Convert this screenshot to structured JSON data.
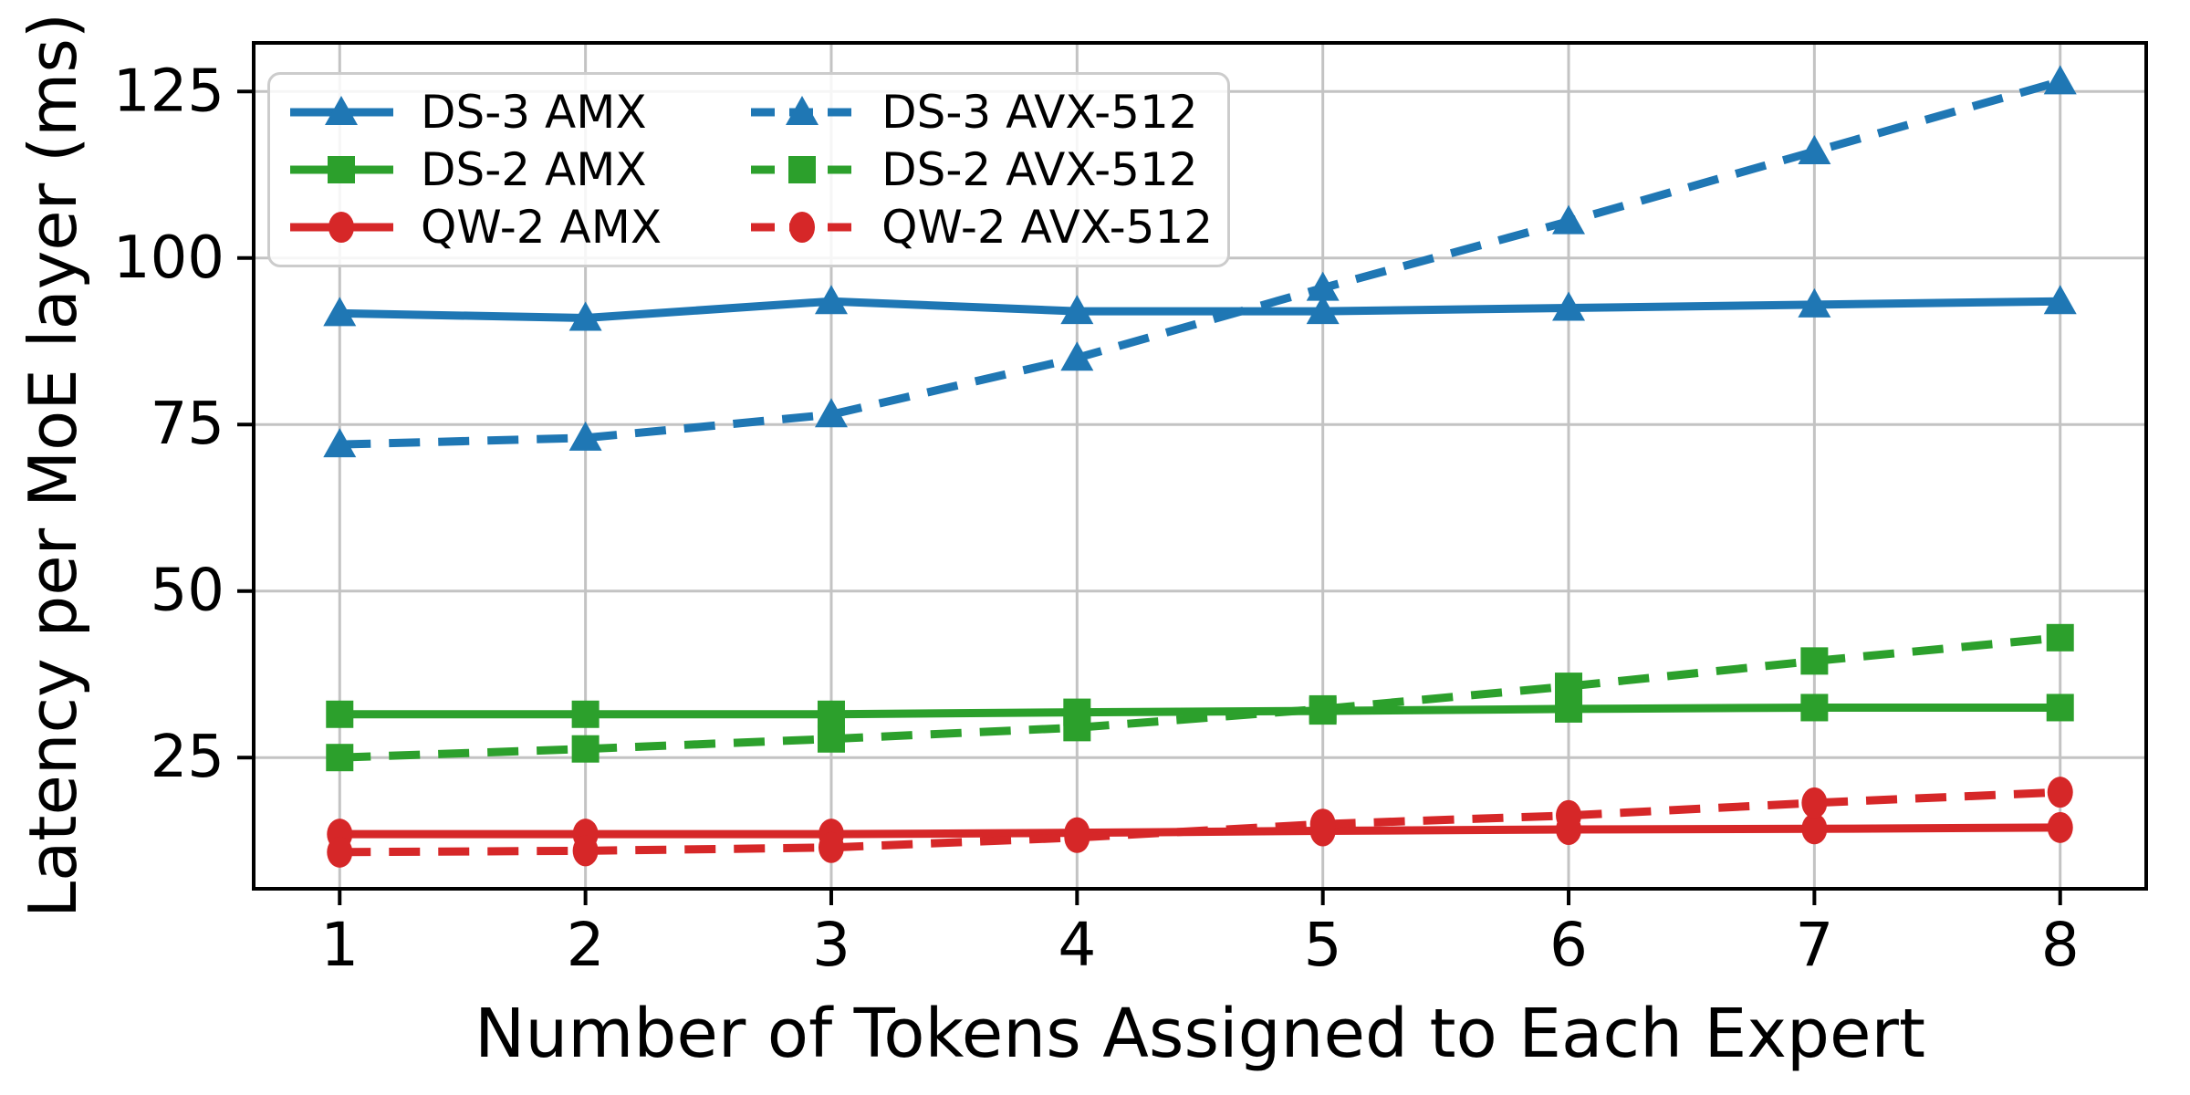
{
  "chart_data": {
    "type": "line",
    "title": "",
    "xlabel": "Number of Tokens Assigned to Each Expert",
    "ylabel": "Latency per MoE layer (ms)",
    "x": [
      1,
      2,
      3,
      4,
      5,
      6,
      7,
      8
    ],
    "xlim": [
      0.65,
      8.35
    ],
    "ylim": [
      5.3,
      132.3
    ],
    "yticks": [
      25,
      50,
      75,
      100,
      125
    ],
    "grid": true,
    "legend_position": "upper left",
    "legend_columns": 2,
    "series": [
      {
        "name": "DS-3 AMX",
        "color": "#1f77b4",
        "line": "solid",
        "marker": "triangle",
        "values": [
          91.7,
          91.0,
          93.5,
          92.0,
          92.0,
          92.5,
          93.0,
          93.5
        ]
      },
      {
        "name": "DS-2 AMX",
        "color": "#2ca02c",
        "line": "solid",
        "marker": "square",
        "values": [
          31.5,
          31.5,
          31.5,
          31.8,
          32.0,
          32.3,
          32.5,
          32.5
        ]
      },
      {
        "name": "QW-2 AMX",
        "color": "#d62728",
        "line": "solid",
        "marker": "circle",
        "values": [
          13.5,
          13.5,
          13.5,
          13.7,
          14.0,
          14.2,
          14.3,
          14.5
        ]
      },
      {
        "name": "DS-3 AVX-512",
        "color": "#1f77b4",
        "line": "dashed",
        "marker": "triangle",
        "values": [
          72.0,
          73.0,
          76.5,
          85.0,
          95.5,
          105.5,
          116.0,
          126.5
        ]
      },
      {
        "name": "DS-2 AVX-512",
        "color": "#2ca02c",
        "line": "dashed",
        "marker": "square",
        "values": [
          25.0,
          26.3,
          27.8,
          29.5,
          32.3,
          35.7,
          39.5,
          43.0
        ]
      },
      {
        "name": "QW-2 AVX-512",
        "color": "#d62728",
        "line": "dashed",
        "marker": "circle",
        "values": [
          10.8,
          11.0,
          11.5,
          13.0,
          15.0,
          16.3,
          18.2,
          19.8
        ]
      }
    ],
    "colors": {
      "grid": "#c3c3c3",
      "spine": "#000000",
      "background": "#ffffff",
      "legend_border": "#cccccc",
      "tick_label": "#000000"
    }
  }
}
